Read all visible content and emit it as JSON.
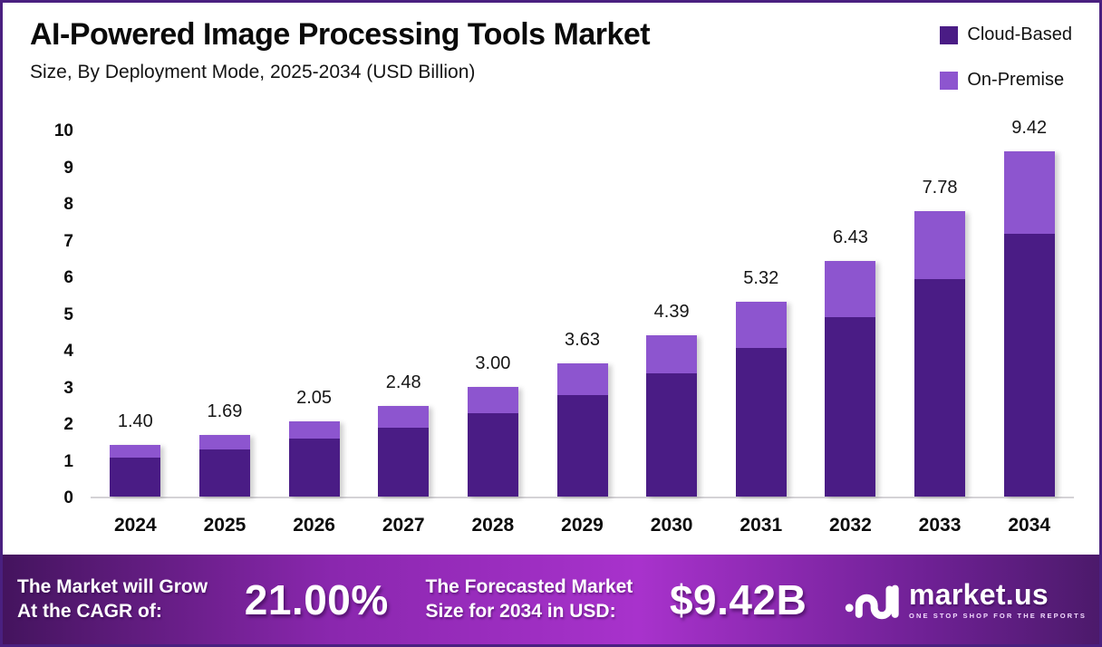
{
  "header": {
    "title": "AI-Powered Image Processing Tools Market",
    "subtitle": "Size, By Deployment Mode, 2025-2034 (USD Billion)"
  },
  "legend": {
    "items": [
      {
        "label": "Cloud-Based",
        "color": "#4a1c85"
      },
      {
        "label": "On-Premise",
        "color": "#8d55cf"
      }
    ]
  },
  "chart_data": {
    "type": "bar",
    "stacked": true,
    "title": "AI-Powered Image Processing Tools Market",
    "subtitle": "Size, By Deployment Mode, 2025-2034 (USD Billion)",
    "unit": "USD Billion",
    "categories": [
      "2024",
      "2025",
      "2026",
      "2027",
      "2028",
      "2029",
      "2030",
      "2031",
      "2032",
      "2033",
      "2034"
    ],
    "series": [
      {
        "name": "Cloud-Based",
        "color": "#4a1c85",
        "values": [
          1.06,
          1.29,
          1.57,
          1.88,
          2.28,
          2.76,
          3.35,
          4.05,
          4.89,
          5.92,
          7.17
        ]
      },
      {
        "name": "On-Premise",
        "color": "#8d55cf",
        "values": [
          0.34,
          0.4,
          0.48,
          0.6,
          0.72,
          0.87,
          1.04,
          1.27,
          1.54,
          1.86,
          2.25
        ]
      }
    ],
    "totals": [
      1.4,
      1.69,
      2.05,
      2.48,
      3.0,
      3.63,
      4.39,
      5.32,
      6.43,
      7.78,
      9.42
    ],
    "total_labels": [
      "1.40",
      "1.69",
      "2.05",
      "2.48",
      "3.00",
      "3.63",
      "4.39",
      "5.32",
      "6.43",
      "7.78",
      "9.42"
    ],
    "ylim": [
      0,
      10
    ],
    "yticks": [
      0,
      1,
      2,
      3,
      4,
      5,
      6,
      7,
      8,
      9,
      10
    ],
    "grid": false,
    "legend_position": "top-right"
  },
  "banner": {
    "growth_line1": "The Market will Grow",
    "growth_line2": "At the CAGR of:",
    "cagr_value": "21.00%",
    "forecast_line1": "The Forecasted Market",
    "forecast_line2": "Size for 2034 in USD:",
    "forecast_value": "$9.42B",
    "brand": {
      "name": "market.us",
      "tagline": "ONE STOP SHOP FOR THE REPORTS"
    },
    "gradient": [
      "#44145e",
      "#8a27ae",
      "#a832cc",
      "#6d2093",
      "#4c1a6b"
    ]
  },
  "colors": {
    "border": "#4a2080",
    "background": "#ffffff",
    "baseline": "#d4d2d6",
    "cloud_based": "#4a1c85",
    "on_premise": "#8d55cf"
  }
}
